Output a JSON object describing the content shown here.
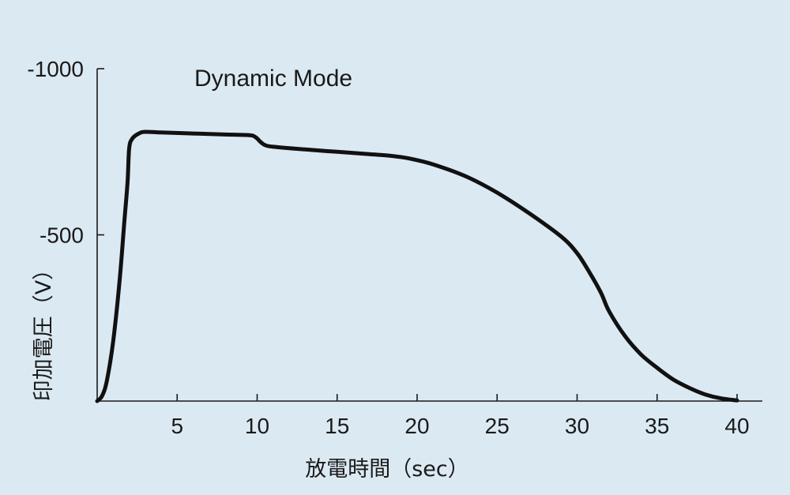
{
  "chart_data": {
    "type": "line",
    "title": "Dynamic Mode",
    "xlabel": "放電時間（sec）",
    "ylabel": "印加電圧（V）",
    "xlim": [
      0,
      40
    ],
    "ylim": [
      0,
      -1000
    ],
    "xticks": [
      5,
      10,
      15,
      20,
      25,
      30,
      35,
      40
    ],
    "yticks": [
      -500,
      -1000
    ],
    "grid": false,
    "series": [
      {
        "x": [
          0,
          0.3,
          0.6,
          1.0,
          1.4,
          1.7,
          1.9,
          2.0,
          2.2,
          2.6,
          3.0,
          4.0,
          6.0,
          8.0,
          9.5,
          9.8,
          10.0,
          10.2,
          10.5,
          11.0,
          13.0,
          15.0,
          17.0,
          18.5,
          19.5,
          21.0,
          23.0,
          25.0,
          27.0,
          29.0,
          30.0,
          30.8,
          31.5,
          32.0,
          33.0,
          34.0,
          35.0,
          36.0,
          37.0,
          38.0,
          39.0,
          40.0
        ],
        "y": [
          0,
          -15,
          -60,
          -180,
          -360,
          -540,
          -660,
          -760,
          -790,
          -805,
          -810,
          -808,
          -805,
          -802,
          -800,
          -797,
          -790,
          -780,
          -770,
          -765,
          -757,
          -750,
          -743,
          -737,
          -730,
          -712,
          -677,
          -627,
          -565,
          -495,
          -445,
          -385,
          -325,
          -270,
          -195,
          -140,
          -100,
          -65,
          -40,
          -20,
          -8,
          -2
        ]
      }
    ]
  }
}
